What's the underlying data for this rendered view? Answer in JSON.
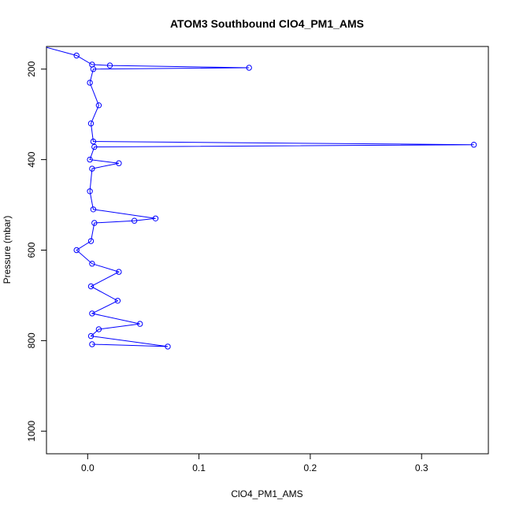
{
  "chart_data": {
    "type": "scatter",
    "title": "ATOM3 Southbound ClO4_PM1_AMS",
    "xlabel": "ClO4_PM1_AMS",
    "ylabel": "Pressure (mbar)",
    "xlim": [
      -0.037,
      0.36
    ],
    "ylim": [
      1050,
      150
    ],
    "y_reversed": true,
    "x_ticks": [
      "0.0",
      "0.1",
      "0.2",
      "0.3"
    ],
    "x_tick_values": [
      0,
      0.1,
      0.2,
      0.3
    ],
    "y_ticks": [
      "200",
      "400",
      "600",
      "800",
      "1000"
    ],
    "y_tick_values": [
      200,
      400,
      600,
      800,
      1000
    ],
    "grid": false,
    "legend": "none",
    "color": "#0000ff",
    "marker": "open-circle",
    "line": true,
    "series": [
      {
        "values": [
          {
            "x": -0.04,
            "y": 150
          },
          {
            "x": -0.01,
            "y": 170
          },
          {
            "x": 0.004,
            "y": 190
          },
          {
            "x": 0.02,
            "y": 192
          },
          {
            "x": 0.145,
            "y": 197
          },
          {
            "x": 0.005,
            "y": 200
          },
          {
            "x": 0.002,
            "y": 230
          },
          {
            "x": 0.01,
            "y": 280
          },
          {
            "x": 0.003,
            "y": 320
          },
          {
            "x": 0.005,
            "y": 360
          },
          {
            "x": 0.347,
            "y": 367
          },
          {
            "x": 0.006,
            "y": 372
          },
          {
            "x": 0.002,
            "y": 400
          },
          {
            "x": 0.028,
            "y": 408
          },
          {
            "x": 0.004,
            "y": 420
          },
          {
            "x": 0.002,
            "y": 470
          },
          {
            "x": 0.005,
            "y": 510
          },
          {
            "x": 0.061,
            "y": 530
          },
          {
            "x": 0.042,
            "y": 535
          },
          {
            "x": 0.006,
            "y": 540
          },
          {
            "x": 0.003,
            "y": 580
          },
          {
            "x": -0.01,
            "y": 600
          },
          {
            "x": 0.004,
            "y": 630
          },
          {
            "x": 0.028,
            "y": 648
          },
          {
            "x": 0.003,
            "y": 680
          },
          {
            "x": 0.027,
            "y": 712
          },
          {
            "x": 0.004,
            "y": 740
          },
          {
            "x": 0.047,
            "y": 763
          },
          {
            "x": 0.01,
            "y": 775
          },
          {
            "x": 0.003,
            "y": 790
          },
          {
            "x": 0.072,
            "y": 813
          },
          {
            "x": 0.004,
            "y": 808
          }
        ]
      }
    ]
  }
}
